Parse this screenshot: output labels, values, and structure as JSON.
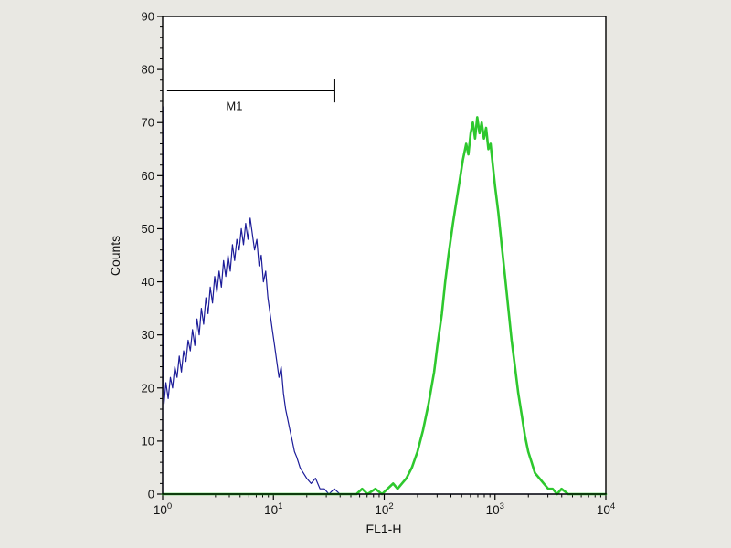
{
  "chart_data": {
    "type": "line",
    "title": "",
    "xlabel": "FL1-H",
    "ylabel": "Counts",
    "x_scale": "log10",
    "x_log_range": [
      0,
      4
    ],
    "ylim": [
      0,
      90
    ],
    "grid": false,
    "legend": "none",
    "plot_bg": "#ffffff",
    "outer_bg": "#e9e8e3",
    "axis_color": "#000000",
    "y_ticks": {
      "major": [
        0,
        10,
        20,
        30,
        40,
        50,
        60,
        70,
        80,
        90
      ],
      "minor_step": 2
    },
    "x_ticks": {
      "base": 10,
      "decade_exponents": [
        0,
        1,
        2,
        3,
        4
      ],
      "minor_multiples": [
        2,
        3,
        4,
        5,
        6,
        7,
        8,
        9
      ]
    },
    "marker": {
      "label": "M1",
      "y_count": 76,
      "x_log_start": 0.04,
      "x_log_end": 1.55,
      "end_tick_half_counts": 2.2,
      "color": "#000000"
    },
    "series": [
      {
        "name": "blue",
        "color": "#1c1c99",
        "stroke_width": 1.2,
        "points_logx_count": [
          [
            0,
            0
          ],
          [
            0.002,
            73
          ],
          [
            0.005,
            52
          ],
          [
            0.008,
            34
          ],
          [
            0.012,
            17
          ],
          [
            0.03,
            21
          ],
          [
            0.05,
            18
          ],
          [
            0.07,
            22
          ],
          [
            0.09,
            20
          ],
          [
            0.11,
            24
          ],
          [
            0.13,
            22
          ],
          [
            0.15,
            26
          ],
          [
            0.17,
            23
          ],
          [
            0.19,
            27
          ],
          [
            0.21,
            25
          ],
          [
            0.23,
            29
          ],
          [
            0.25,
            27
          ],
          [
            0.27,
            31
          ],
          [
            0.29,
            28
          ],
          [
            0.31,
            33
          ],
          [
            0.33,
            30
          ],
          [
            0.35,
            35
          ],
          [
            0.37,
            32
          ],
          [
            0.39,
            37
          ],
          [
            0.41,
            34
          ],
          [
            0.43,
            39
          ],
          [
            0.45,
            36
          ],
          [
            0.47,
            41
          ],
          [
            0.49,
            38
          ],
          [
            0.51,
            42
          ],
          [
            0.53,
            39
          ],
          [
            0.55,
            44
          ],
          [
            0.57,
            41
          ],
          [
            0.59,
            45
          ],
          [
            0.61,
            42
          ],
          [
            0.63,
            47
          ],
          [
            0.65,
            44
          ],
          [
            0.67,
            48
          ],
          [
            0.69,
            46
          ],
          [
            0.71,
            50
          ],
          [
            0.73,
            47
          ],
          [
            0.75,
            51
          ],
          [
            0.77,
            48
          ],
          [
            0.79,
            52
          ],
          [
            0.81,
            49
          ],
          [
            0.83,
            46
          ],
          [
            0.85,
            48
          ],
          [
            0.87,
            43
          ],
          [
            0.89,
            45
          ],
          [
            0.91,
            40
          ],
          [
            0.93,
            42
          ],
          [
            0.95,
            37
          ],
          [
            0.97,
            34
          ],
          [
            0.99,
            31
          ],
          [
            1.01,
            28
          ],
          [
            1.03,
            25
          ],
          [
            1.05,
            22
          ],
          [
            1.07,
            24
          ],
          [
            1.09,
            19
          ],
          [
            1.11,
            16
          ],
          [
            1.13,
            14
          ],
          [
            1.15,
            12
          ],
          [
            1.17,
            10
          ],
          [
            1.19,
            8
          ],
          [
            1.21,
            7
          ],
          [
            1.24,
            5
          ],
          [
            1.27,
            4
          ],
          [
            1.3,
            3
          ],
          [
            1.34,
            2
          ],
          [
            1.38,
            3
          ],
          [
            1.42,
            1
          ],
          [
            1.46,
            1
          ],
          [
            1.5,
            0
          ],
          [
            1.55,
            1
          ],
          [
            1.6,
            0
          ],
          [
            1.8,
            0
          ],
          [
            2.2,
            0
          ],
          [
            2.6,
            0
          ],
          [
            3,
            0
          ],
          [
            3.4,
            0
          ],
          [
            3.8,
            0
          ],
          [
            4,
            0
          ]
        ]
      },
      {
        "name": "green",
        "color": "#2ec82e",
        "stroke_width": 2.6,
        "points_logx_count": [
          [
            0,
            0
          ],
          [
            0.6,
            0
          ],
          [
            1.2,
            0
          ],
          [
            1.6,
            0
          ],
          [
            1.75,
            0
          ],
          [
            1.8,
            1
          ],
          [
            1.85,
            0
          ],
          [
            1.92,
            1
          ],
          [
            1.98,
            0
          ],
          [
            2.03,
            1
          ],
          [
            2.08,
            2
          ],
          [
            2.12,
            1
          ],
          [
            2.16,
            2
          ],
          [
            2.2,
            3
          ],
          [
            2.25,
            5
          ],
          [
            2.3,
            8
          ],
          [
            2.35,
            12
          ],
          [
            2.4,
            17
          ],
          [
            2.45,
            23
          ],
          [
            2.48,
            28
          ],
          [
            2.52,
            34
          ],
          [
            2.55,
            40
          ],
          [
            2.58,
            45
          ],
          [
            2.62,
            51
          ],
          [
            2.65,
            55
          ],
          [
            2.68,
            59
          ],
          [
            2.71,
            63
          ],
          [
            2.74,
            66
          ],
          [
            2.76,
            64
          ],
          [
            2.78,
            68
          ],
          [
            2.8,
            70
          ],
          [
            2.82,
            67
          ],
          [
            2.84,
            71
          ],
          [
            2.86,
            68
          ],
          [
            2.88,
            70
          ],
          [
            2.9,
            67
          ],
          [
            2.92,
            69
          ],
          [
            2.94,
            65
          ],
          [
            2.96,
            66
          ],
          [
            2.98,
            62
          ],
          [
            3,
            58
          ],
          [
            3.03,
            53
          ],
          [
            3.06,
            47
          ],
          [
            3.09,
            41
          ],
          [
            3.12,
            35
          ],
          [
            3.15,
            29
          ],
          [
            3.18,
            24
          ],
          [
            3.21,
            19
          ],
          [
            3.24,
            15
          ],
          [
            3.27,
            11
          ],
          [
            3.3,
            8
          ],
          [
            3.33,
            6
          ],
          [
            3.36,
            4
          ],
          [
            3.4,
            3
          ],
          [
            3.44,
            2
          ],
          [
            3.48,
            1
          ],
          [
            3.52,
            1
          ],
          [
            3.56,
            0
          ],
          [
            3.6,
            1
          ],
          [
            3.66,
            0
          ],
          [
            3.8,
            0
          ],
          [
            4,
            0
          ]
        ]
      }
    ]
  }
}
